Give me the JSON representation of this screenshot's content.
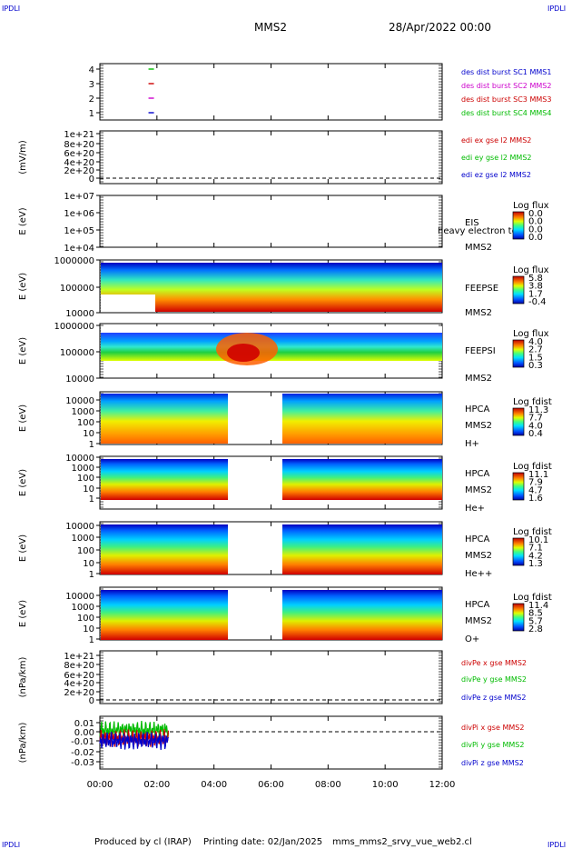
{
  "header": {
    "corner_left_top": "IPDLI",
    "corner_right_top": "IPDLI",
    "corner_left_bottom": "IPDLI",
    "corner_right_bottom": "IPDLI",
    "mission": "MMS2",
    "date": "28/Apr/2022 00:00"
  },
  "footer": {
    "produced_by": "Produced by cl (IRAP)",
    "printing_date": "Printing date: 02/Jan/2025",
    "filename": "mms_mms2_srvy_vue_web2.cl"
  },
  "chart_data": {
    "type": "line",
    "x_axis": {
      "ticks": [
        "00:00",
        "02:00",
        "04:00",
        "06:00",
        "08:00",
        "10:00",
        "12:00"
      ],
      "range_hours": [
        0,
        12
      ]
    },
    "panels": [
      {
        "id": "panel1",
        "ylabel": "",
        "yticks": [
          "4",
          "3",
          "2",
          "1"
        ],
        "legend": [
          {
            "text": "des dist burst SC1 MMS1",
            "color": "#0000cc"
          },
          {
            "text": "des dist burst SC2 MMS2",
            "color": "#cc00cc"
          },
          {
            "text": "des dist burst SC3 MMS3",
            "color": "#cc0000"
          },
          {
            "text": "des dist burst SC4 MMS4",
            "color": "#00bb00"
          }
        ],
        "marks": [
          {
            "level": 4,
            "x_hours": 1.8,
            "color": "#00bb00"
          },
          {
            "level": 3,
            "x_hours": 1.8,
            "color": "#cc0000"
          },
          {
            "level": 2,
            "x_hours": 1.8,
            "color": "#cc00cc"
          },
          {
            "level": 1,
            "x_hours": 1.8,
            "color": "#0000cc"
          }
        ]
      },
      {
        "id": "panel2",
        "ylabel": "(mV/m)",
        "yticks": [
          "1e+21",
          "8e+20",
          "6e+20",
          "4e+20",
          "2e+20",
          "0"
        ],
        "legend": [
          {
            "text": "edi ex gse l2 MMS2",
            "color": "#cc0000"
          },
          {
            "text": "edi ey gse l2 MMS2",
            "color": "#00bb00"
          },
          {
            "text": "edi ez gse l2 MMS2",
            "color": "#0000cc"
          }
        ]
      },
      {
        "id": "panel3",
        "ylabel": "E (eV)",
        "yticks": [
          "1e+07",
          "1e+06",
          "1e+05",
          "1e+04"
        ],
        "right_labels": [
          "EIS",
          "MMS2"
        ],
        "overlay_text": "heavy electron to",
        "colorbar": {
          "title": "Log flux",
          "ticks": [
            "0.0",
            "0.0",
            "0.0",
            "0.0"
          ]
        }
      },
      {
        "id": "panel4",
        "ylabel": "E (eV)",
        "yticks": [
          "1000000",
          "100000",
          "10000"
        ],
        "right_labels": [
          "FEEPSE",
          "MMS2"
        ],
        "colorbar": {
          "title": "Log flux",
          "ticks": [
            "5.8",
            "3.8",
            "1.7",
            "-0.4"
          ]
        }
      },
      {
        "id": "panel5",
        "ylabel": "E (eV)",
        "yticks": [
          "1000000",
          "100000",
          "10000"
        ],
        "right_labels": [
          "FEEPSI",
          "MMS2"
        ],
        "colorbar": {
          "title": "Log flux",
          "ticks": [
            "4.0",
            "2.7",
            "1.5",
            "0.3"
          ]
        }
      },
      {
        "id": "panel6",
        "ylabel": "E (eV)",
        "yticks": [
          "10000",
          "1000",
          "100",
          "10",
          "1"
        ],
        "right_labels": [
          "HPCA",
          "MMS2",
          "H+"
        ],
        "colorbar": {
          "title": "Log fdist",
          "ticks": [
            "11.3",
            "7.7",
            "4.0",
            "0.4"
          ]
        }
      },
      {
        "id": "panel7",
        "ylabel": "E (eV)",
        "yticks": [
          "10000",
          "1000",
          "100",
          "10",
          "1"
        ],
        "right_labels": [
          "HPCA",
          "MMS2",
          "He+"
        ],
        "colorbar": {
          "title": "Log fdist",
          "ticks": [
            "11.1",
            "7.9",
            "4.7",
            "1.6"
          ]
        }
      },
      {
        "id": "panel8",
        "ylabel": "E (eV)",
        "yticks": [
          "10000",
          "1000",
          "100",
          "10",
          "1"
        ],
        "right_labels": [
          "HPCA",
          "MMS2",
          "He++"
        ],
        "colorbar": {
          "title": "Log fdist",
          "ticks": [
            "10.1",
            "7.1",
            "4.2",
            "1.3"
          ]
        }
      },
      {
        "id": "panel9",
        "ylabel": "E (eV)",
        "yticks": [
          "10000",
          "1000",
          "100",
          "10",
          "1"
        ],
        "right_labels": [
          "HPCA",
          "MMS2",
          "O+"
        ],
        "colorbar": {
          "title": "Log fdist",
          "ticks": [
            "11.4",
            "8.5",
            "5.7",
            "2.8"
          ]
        }
      },
      {
        "id": "panel10",
        "ylabel": "(nPa/km)",
        "yticks": [
          "1e+21",
          "8e+20",
          "6e+20",
          "4e+20",
          "2e+20",
          "0"
        ],
        "legend": [
          {
            "text": "divPe x gse MMS2",
            "color": "#cc0000"
          },
          {
            "text": "divPe y gse MMS2",
            "color": "#00bb00"
          },
          {
            "text": "divPe z gse MMS2",
            "color": "#0000cc"
          }
        ]
      },
      {
        "id": "panel11",
        "ylabel": "(nPa/km)",
        "yticks": [
          "0.01",
          "0.00",
          "-0.01",
          "-0.02",
          "-0.03"
        ],
        "ylim": [
          -0.035,
          0.015
        ],
        "legend": [
          {
            "text": "divPi x gse MMS2",
            "color": "#cc0000"
          },
          {
            "text": "divPi y gse MMS2",
            "color": "#00bb00"
          },
          {
            "text": "divPi z gse MMS2",
            "color": "#0000cc"
          }
        ],
        "data_span_hours": [
          0,
          2.4
        ]
      }
    ]
  }
}
